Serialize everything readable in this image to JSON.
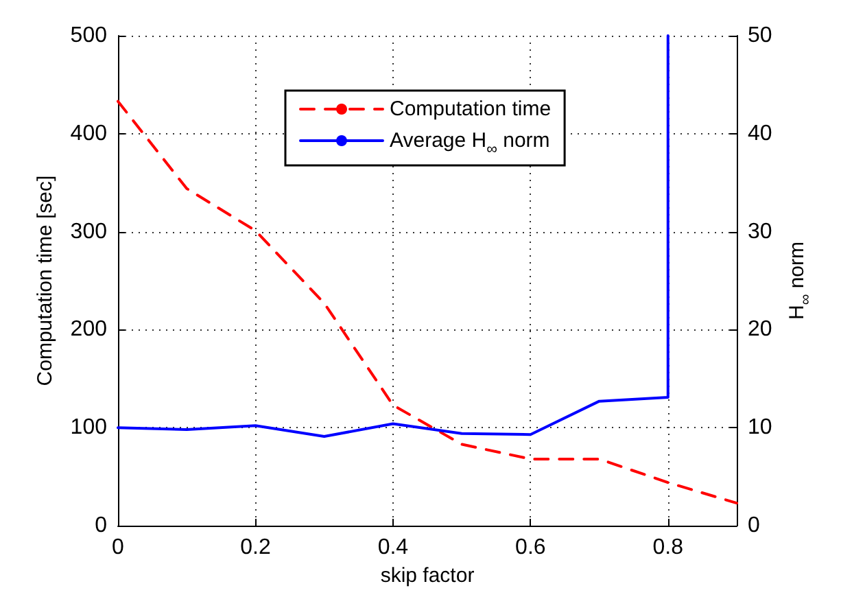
{
  "chart_data": {
    "type": "line",
    "xlabel": "skip factor",
    "ylabel": "Computation time [sec]",
    "y2label": "H$_{∞}$ norm",
    "x": [
      0,
      0.1,
      0.2,
      0.3,
      0.4,
      0.5,
      0.6,
      0.7,
      0.8,
      0.9
    ],
    "series": [
      {
        "name": "Computation time",
        "color": "#ff0000",
        "line_style": "dashed",
        "values": [
          433,
          344,
          301,
          227,
          123,
          83,
          68,
          68,
          44,
          23
        ]
      },
      {
        "name": "Average H$_{∞}$ norm",
        "color": "#0000ff",
        "line_style": "solid",
        "axis": "y2",
        "x": [
          0,
          0.1,
          0.2,
          0.3,
          0.4,
          0.5,
          0.6,
          0.7,
          0.8,
          0.8
        ],
        "values": [
          10.0,
          9.8,
          10.2,
          9.1,
          10.4,
          9.4,
          9.3,
          12.7,
          13.1,
          50
        ]
      }
    ],
    "xlim": [
      0,
      0.9
    ],
    "xticks": [
      0,
      0.2,
      0.4,
      0.6,
      0.8
    ],
    "ylim": [
      0,
      500
    ],
    "yticks": [
      0,
      100,
      200,
      300,
      400,
      500
    ],
    "y2lim": [
      0,
      50
    ],
    "y2ticks": [
      0,
      10,
      20,
      30,
      40,
      50
    ],
    "grid": true,
    "legend": "top",
    "marker": "none"
  }
}
